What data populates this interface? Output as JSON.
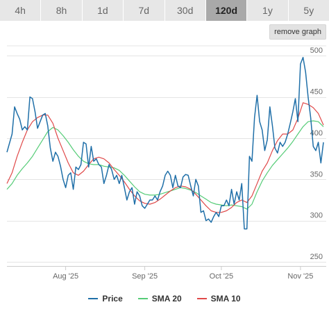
{
  "tabs": [
    {
      "label": "4h",
      "active": false
    },
    {
      "label": "8h",
      "active": false
    },
    {
      "label": "1d",
      "active": false
    },
    {
      "label": "7d",
      "active": false
    },
    {
      "label": "30d",
      "active": false
    },
    {
      "label": "120d",
      "active": true
    },
    {
      "label": "1y",
      "active": false
    },
    {
      "label": "5y",
      "active": false
    }
  ],
  "remove_button_label": "remove graph",
  "colors": {
    "price": "#1f6fa8",
    "sma20": "#55cc77",
    "sma10": "#e04848",
    "grid": "#e4e4e4",
    "active_tab": "#a9a9a9"
  },
  "chart_data": {
    "type": "line",
    "title": "",
    "xlabel": "",
    "ylabel": "",
    "x_ticks": [
      "Aug '25",
      "Sep '25",
      "Oct '25",
      "Nov '25"
    ],
    "y_ticks": [
      250,
      300,
      350,
      400,
      450,
      500
    ],
    "ylim": [
      245,
      512
    ],
    "grid": "horizontal",
    "legend_position": "bottom",
    "x_start": "2025-07-09",
    "x_end": "2025-11-09",
    "series": [
      {
        "name": "Price",
        "color": "#1f6fa8",
        "points": [
          [
            "2025-07-09",
            383
          ],
          [
            "2025-07-11",
            405
          ],
          [
            "2025-07-12",
            438
          ],
          [
            "2025-07-13",
            430
          ],
          [
            "2025-07-14",
            423
          ],
          [
            "2025-07-15",
            410
          ],
          [
            "2025-07-16",
            414
          ],
          [
            "2025-07-17",
            410
          ],
          [
            "2025-07-18",
            450
          ],
          [
            "2025-07-19",
            448
          ],
          [
            "2025-07-20",
            432
          ],
          [
            "2025-07-21",
            412
          ],
          [
            "2025-07-22",
            420
          ],
          [
            "2025-07-23",
            428
          ],
          [
            "2025-07-24",
            430
          ],
          [
            "2025-07-25",
            415
          ],
          [
            "2025-07-26",
            388
          ],
          [
            "2025-07-27",
            372
          ],
          [
            "2025-07-28",
            383
          ],
          [
            "2025-07-29",
            378
          ],
          [
            "2025-07-30",
            366
          ],
          [
            "2025-07-31",
            350
          ],
          [
            "2025-08-01",
            340
          ],
          [
            "2025-08-02",
            355
          ],
          [
            "2025-08-03",
            358
          ],
          [
            "2025-08-04",
            338
          ],
          [
            "2025-08-05",
            365
          ],
          [
            "2025-08-06",
            362
          ],
          [
            "2025-08-07",
            368
          ],
          [
            "2025-08-08",
            395
          ],
          [
            "2025-08-09",
            393
          ],
          [
            "2025-08-10",
            365
          ],
          [
            "2025-08-11",
            390
          ],
          [
            "2025-08-12",
            372
          ],
          [
            "2025-08-13",
            375
          ],
          [
            "2025-08-14",
            368
          ],
          [
            "2025-08-15",
            365
          ],
          [
            "2025-08-16",
            345
          ],
          [
            "2025-08-17",
            355
          ],
          [
            "2025-08-18",
            368
          ],
          [
            "2025-08-19",
            362
          ],
          [
            "2025-08-20",
            350
          ],
          [
            "2025-08-21",
            355
          ],
          [
            "2025-08-22",
            345
          ],
          [
            "2025-08-23",
            355
          ],
          [
            "2025-08-24",
            340
          ],
          [
            "2025-08-25",
            325
          ],
          [
            "2025-08-26",
            335
          ],
          [
            "2025-08-27",
            340
          ],
          [
            "2025-08-28",
            320
          ],
          [
            "2025-08-29",
            335
          ],
          [
            "2025-08-30",
            330
          ],
          [
            "2025-08-31",
            318
          ],
          [
            "2025-09-01",
            315
          ],
          [
            "2025-09-02",
            320
          ],
          [
            "2025-09-03",
            325
          ],
          [
            "2025-09-04",
            325
          ],
          [
            "2025-09-05",
            330
          ],
          [
            "2025-09-06",
            325
          ],
          [
            "2025-09-07",
            335
          ],
          [
            "2025-09-08",
            342
          ],
          [
            "2025-09-09",
            355
          ],
          [
            "2025-09-10",
            360
          ],
          [
            "2025-09-11",
            355
          ],
          [
            "2025-09-12",
            340
          ],
          [
            "2025-09-13",
            355
          ],
          [
            "2025-09-14",
            342
          ],
          [
            "2025-09-15",
            340
          ],
          [
            "2025-09-16",
            353
          ],
          [
            "2025-09-17",
            356
          ],
          [
            "2025-09-18",
            355
          ],
          [
            "2025-09-19",
            342
          ],
          [
            "2025-09-20",
            330
          ],
          [
            "2025-09-21",
            350
          ],
          [
            "2025-09-22",
            342
          ],
          [
            "2025-09-23",
            310
          ],
          [
            "2025-09-24",
            312
          ],
          [
            "2025-09-25",
            300
          ],
          [
            "2025-09-26",
            302
          ],
          [
            "2025-09-27",
            298
          ],
          [
            "2025-09-28",
            305
          ],
          [
            "2025-09-29",
            310
          ],
          [
            "2025-09-30",
            305
          ],
          [
            "2025-10-01",
            318
          ],
          [
            "2025-10-02",
            318
          ],
          [
            "2025-10-03",
            325
          ],
          [
            "2025-10-04",
            318
          ],
          [
            "2025-10-05",
            338
          ],
          [
            "2025-10-06",
            320
          ],
          [
            "2025-10-07",
            335
          ],
          [
            "2025-10-08",
            325
          ],
          [
            "2025-10-09",
            345
          ],
          [
            "2025-10-10",
            290
          ],
          [
            "2025-10-11",
            290
          ],
          [
            "2025-10-12",
            378
          ],
          [
            "2025-10-13",
            372
          ],
          [
            "2025-10-14",
            425
          ],
          [
            "2025-10-15",
            452
          ],
          [
            "2025-10-16",
            420
          ],
          [
            "2025-10-17",
            410
          ],
          [
            "2025-10-18",
            385
          ],
          [
            "2025-10-19",
            398
          ],
          [
            "2025-10-20",
            438
          ],
          [
            "2025-10-21",
            415
          ],
          [
            "2025-10-22",
            388
          ],
          [
            "2025-10-23",
            382
          ],
          [
            "2025-10-24",
            395
          ],
          [
            "2025-10-25",
            390
          ],
          [
            "2025-10-26",
            395
          ],
          [
            "2025-10-27",
            405
          ],
          [
            "2025-10-28",
            418
          ],
          [
            "2025-10-29",
            432
          ],
          [
            "2025-10-30",
            448
          ],
          [
            "2025-10-31",
            420
          ],
          [
            "2025-11-01",
            490
          ],
          [
            "2025-11-02",
            498
          ],
          [
            "2025-11-03",
            480
          ],
          [
            "2025-11-04",
            450
          ],
          [
            "2025-11-05",
            425
          ],
          [
            "2025-11-06",
            390
          ],
          [
            "2025-11-07",
            385
          ],
          [
            "2025-11-08",
            395
          ],
          [
            "2025-11-09",
            370
          ],
          [
            "2025-11-10",
            395
          ]
        ]
      },
      {
        "name": "SMA 20",
        "color": "#55cc77",
        "points": [
          [
            "2025-07-09",
            338
          ],
          [
            "2025-07-11",
            345
          ],
          [
            "2025-07-13",
            355
          ],
          [
            "2025-07-15",
            363
          ],
          [
            "2025-07-17",
            370
          ],
          [
            "2025-07-19",
            378
          ],
          [
            "2025-07-21",
            388
          ],
          [
            "2025-07-23",
            398
          ],
          [
            "2025-07-25",
            408
          ],
          [
            "2025-07-27",
            413
          ],
          [
            "2025-07-29",
            410
          ],
          [
            "2025-07-31",
            403
          ],
          [
            "2025-08-02",
            395
          ],
          [
            "2025-08-04",
            386
          ],
          [
            "2025-08-06",
            378
          ],
          [
            "2025-08-08",
            372
          ],
          [
            "2025-08-10",
            369
          ],
          [
            "2025-08-12",
            368
          ],
          [
            "2025-08-14",
            368
          ],
          [
            "2025-08-16",
            366
          ],
          [
            "2025-08-18",
            365
          ],
          [
            "2025-08-20",
            364
          ],
          [
            "2025-08-22",
            361
          ],
          [
            "2025-08-24",
            355
          ],
          [
            "2025-08-26",
            348
          ],
          [
            "2025-08-28",
            341
          ],
          [
            "2025-08-30",
            335
          ],
          [
            "2025-09-01",
            332
          ],
          [
            "2025-09-03",
            331
          ],
          [
            "2025-09-05",
            331
          ],
          [
            "2025-09-07",
            332
          ],
          [
            "2025-09-09",
            334
          ],
          [
            "2025-09-11",
            336
          ],
          [
            "2025-09-13",
            338
          ],
          [
            "2025-09-15",
            340
          ],
          [
            "2025-09-17",
            339
          ],
          [
            "2025-09-19",
            337
          ],
          [
            "2025-09-21",
            334
          ],
          [
            "2025-09-23",
            330
          ],
          [
            "2025-09-25",
            326
          ],
          [
            "2025-09-27",
            322
          ],
          [
            "2025-09-29",
            320
          ],
          [
            "2025-10-01",
            319
          ],
          [
            "2025-10-03",
            318
          ],
          [
            "2025-10-05",
            319
          ],
          [
            "2025-10-07",
            318
          ],
          [
            "2025-10-09",
            317
          ],
          [
            "2025-10-11",
            314
          ],
          [
            "2025-10-13",
            320
          ],
          [
            "2025-10-15",
            335
          ],
          [
            "2025-10-17",
            348
          ],
          [
            "2025-10-19",
            358
          ],
          [
            "2025-10-21",
            367
          ],
          [
            "2025-10-23",
            374
          ],
          [
            "2025-10-25",
            381
          ],
          [
            "2025-10-27",
            388
          ],
          [
            "2025-10-29",
            396
          ],
          [
            "2025-10-31",
            405
          ],
          [
            "2025-11-02",
            414
          ],
          [
            "2025-11-04",
            420
          ],
          [
            "2025-11-06",
            421
          ],
          [
            "2025-11-08",
            420
          ],
          [
            "2025-11-10",
            414
          ]
        ]
      },
      {
        "name": "SMA 10",
        "color": "#e04848",
        "points": [
          [
            "2025-07-09",
            345
          ],
          [
            "2025-07-11",
            358
          ],
          [
            "2025-07-13",
            378
          ],
          [
            "2025-07-15",
            395
          ],
          [
            "2025-07-17",
            410
          ],
          [
            "2025-07-19",
            420
          ],
          [
            "2025-07-21",
            425
          ],
          [
            "2025-07-23",
            428
          ],
          [
            "2025-07-25",
            428
          ],
          [
            "2025-07-27",
            418
          ],
          [
            "2025-07-29",
            400
          ],
          [
            "2025-07-31",
            385
          ],
          [
            "2025-08-02",
            370
          ],
          [
            "2025-08-04",
            358
          ],
          [
            "2025-08-06",
            355
          ],
          [
            "2025-08-08",
            360
          ],
          [
            "2025-08-10",
            368
          ],
          [
            "2025-08-12",
            375
          ],
          [
            "2025-08-14",
            377
          ],
          [
            "2025-08-16",
            375
          ],
          [
            "2025-08-18",
            370
          ],
          [
            "2025-08-20",
            362
          ],
          [
            "2025-08-22",
            355
          ],
          [
            "2025-08-24",
            347
          ],
          [
            "2025-08-26",
            338
          ],
          [
            "2025-08-28",
            330
          ],
          [
            "2025-08-30",
            324
          ],
          [
            "2025-09-01",
            321
          ],
          [
            "2025-09-03",
            320
          ],
          [
            "2025-09-05",
            322
          ],
          [
            "2025-09-07",
            326
          ],
          [
            "2025-09-09",
            331
          ],
          [
            "2025-09-11",
            336
          ],
          [
            "2025-09-13",
            340
          ],
          [
            "2025-09-15",
            342
          ],
          [
            "2025-09-17",
            341
          ],
          [
            "2025-09-19",
            338
          ],
          [
            "2025-09-21",
            332
          ],
          [
            "2025-09-23",
            325
          ],
          [
            "2025-09-25",
            318
          ],
          [
            "2025-09-27",
            312
          ],
          [
            "2025-09-29",
            310
          ],
          [
            "2025-10-01",
            310
          ],
          [
            "2025-10-03",
            312
          ],
          [
            "2025-10-05",
            316
          ],
          [
            "2025-10-07",
            322
          ],
          [
            "2025-10-09",
            325
          ],
          [
            "2025-10-11",
            322
          ],
          [
            "2025-10-13",
            330
          ],
          [
            "2025-10-15",
            345
          ],
          [
            "2025-10-17",
            360
          ],
          [
            "2025-10-19",
            370
          ],
          [
            "2025-10-21",
            385
          ],
          [
            "2025-10-23",
            397
          ],
          [
            "2025-10-25",
            405
          ],
          [
            "2025-10-27",
            405
          ],
          [
            "2025-10-29",
            410
          ],
          [
            "2025-10-31",
            424
          ],
          [
            "2025-11-02",
            443
          ],
          [
            "2025-11-04",
            441
          ],
          [
            "2025-11-06",
            437
          ],
          [
            "2025-11-08",
            430
          ],
          [
            "2025-11-10",
            416
          ]
        ]
      }
    ]
  }
}
